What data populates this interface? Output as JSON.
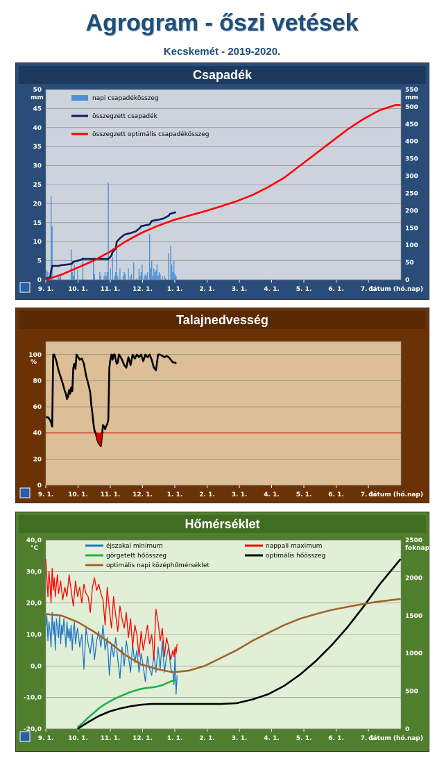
{
  "header": {
    "title": "Agrogram - őszi vetések",
    "subtitle": "Kecskemét - 2019-2020."
  },
  "colors": {
    "title": "#1f4e79"
  },
  "chart_data": [
    {
      "type": "bar+line",
      "title": "Csapadék",
      "left_unit": "mm",
      "right_unit": "mm",
      "xlabel": "dátum (hó.nap)",
      "x_ticks": [
        "9. 1.",
        "10. 1.",
        "11. 1.",
        "12. 1.",
        "1. 1.",
        "2. 1.",
        "3. 1.",
        "4. 1.",
        "5. 1.",
        "6. 1.",
        "7. 1."
      ],
      "ylim": [
        0,
        50
      ],
      "y_ticks": [
        0,
        5,
        10,
        15,
        20,
        25,
        30,
        35,
        40,
        45,
        50
      ],
      "ylim_right": [
        0,
        550
      ],
      "y_ticks_right": [
        0,
        50,
        100,
        150,
        200,
        250,
        300,
        350,
        400,
        450,
        500,
        550
      ],
      "grid": true,
      "legend_position": "top-left",
      "series": [
        {
          "name": "napi csapadékösszeg",
          "kind": "bar",
          "axis": "left",
          "color": "#4f91d3",
          "x": [
            1,
            2,
            3,
            4,
            5,
            6,
            12,
            13,
            14,
            24,
            25,
            26,
            27,
            30,
            35,
            45,
            46,
            51,
            52,
            55,
            56,
            57,
            58,
            59,
            61,
            63,
            65,
            66,
            67,
            68,
            70,
            73,
            74,
            75,
            78,
            80,
            81,
            83,
            86,
            88,
            89,
            90,
            91,
            93,
            94,
            95,
            96,
            98,
            99,
            100,
            101,
            102,
            103,
            104,
            105,
            106,
            107,
            108,
            110,
            112,
            113,
            116,
            118,
            119,
            120,
            121,
            122,
            123
          ],
          "values": [
            2.5,
            2,
            1,
            0.5,
            22,
            14,
            1,
            0.5,
            1.5,
            8,
            2,
            1,
            4,
            2.5,
            6,
            5,
            1.5,
            2,
            1,
            1,
            2,
            1,
            2,
            25.5,
            3,
            6,
            1,
            2,
            9,
            1,
            3,
            1,
            2,
            1.5,
            3,
            1,
            1.5,
            4.5,
            0.5,
            3,
            1,
            2,
            4,
            1,
            1.5,
            1,
            2,
            12,
            3,
            5,
            1,
            3,
            2,
            2.5,
            4,
            1,
            2,
            1.5,
            1,
            1,
            0.5,
            7,
            9,
            4,
            2,
            5,
            1.5,
            1
          ]
        },
        {
          "name": "összegzett csapadék",
          "kind": "line",
          "axis": "right",
          "color": "#0a1f5c",
          "x": [
            0,
            4,
            5,
            6,
            12,
            14,
            23,
            25,
            26,
            30,
            35,
            46,
            51,
            55,
            59,
            62,
            63,
            66,
            67,
            70,
            74,
            77,
            79,
            83,
            85,
            89,
            90,
            95,
            98,
            99,
            100,
            103,
            107,
            110,
            113,
            116,
            117,
            122,
            123
          ],
          "values": [
            5,
            5,
            25,
            40,
            40,
            42,
            45,
            47,
            52,
            55,
            60,
            60,
            60,
            60,
            60,
            70,
            80,
            90,
            110,
            120,
            130,
            133,
            134,
            138,
            140,
            150,
            155,
            158,
            160,
            165,
            170,
            172,
            174,
            176,
            180,
            185,
            190,
            195,
            195
          ]
        },
        {
          "name": "összegzett optimális csapadékösszeg",
          "kind": "line",
          "axis": "right",
          "color": "#ff0000",
          "x": [
            0,
            15,
            30,
            45,
            60,
            75,
            90,
            105,
            120,
            135,
            150,
            165,
            180,
            195,
            210,
            225,
            240,
            255,
            270,
            285,
            300,
            315,
            330,
            335
          ],
          "values": [
            0,
            15,
            35,
            55,
            80,
            110,
            135,
            155,
            172,
            185,
            198,
            212,
            227,
            245,
            268,
            295,
            330,
            365,
            400,
            435,
            465,
            490,
            505,
            505
          ]
        }
      ]
    },
    {
      "type": "line",
      "title": "Talajnedvesség",
      "left_unit": "%",
      "xlabel": "dátum (hó.nap)",
      "x_ticks": [
        "9. 1.",
        "10. 1.",
        "11. 1.",
        "12. 1.",
        "1. 1.",
        "2. 1.",
        "3. 1.",
        "4. 1.",
        "5. 1.",
        "6. 1.",
        "7. 1."
      ],
      "ylim": [
        0,
        110
      ],
      "y_ticks": [
        0,
        20,
        40,
        60,
        80,
        100
      ],
      "threshold": 40,
      "series": [
        {
          "name": "talajnedvesség",
          "color": "#000000",
          "x": [
            0,
            2,
            4,
            5,
            6,
            7,
            8,
            10,
            12,
            14,
            16,
            18,
            19,
            20,
            21,
            22,
            23,
            24,
            25,
            26,
            27,
            28,
            29,
            30,
            32,
            34,
            36,
            38,
            40,
            42,
            43,
            44,
            45,
            46,
            47,
            48,
            49,
            50,
            51,
            52,
            53,
            54,
            55,
            56,
            57,
            58,
            59,
            60,
            61,
            62,
            63,
            64,
            65,
            66,
            67,
            68,
            69,
            70,
            72,
            74,
            76,
            78,
            80,
            82,
            84,
            86,
            88,
            90,
            92,
            94,
            96,
            98,
            100,
            102,
            104,
            106,
            108,
            110,
            112,
            114,
            116,
            118,
            120,
            122,
            123
          ],
          "values": [
            52,
            52,
            50,
            48,
            45,
            100,
            100,
            95,
            88,
            83,
            78,
            72,
            70,
            66,
            68,
            73,
            70,
            75,
            72,
            90,
            93,
            89,
            100,
            99,
            96,
            97,
            93,
            84,
            78,
            71,
            61,
            55,
            47,
            42,
            40,
            37,
            34,
            32,
            31,
            30,
            38,
            46,
            45,
            43,
            45,
            47,
            50,
            90,
            96,
            100,
            96,
            100,
            100,
            96,
            93,
            94,
            100,
            99,
            96,
            92,
            90,
            98,
            92,
            100,
            97,
            100,
            98,
            100,
            95,
            100,
            98,
            100,
            96,
            90,
            88,
            100,
            100,
            99,
            98,
            99,
            98,
            96,
            94,
            94,
            93
          ]
        }
      ]
    },
    {
      "type": "line",
      "title": "Hőmérséklet",
      "left_unit": "°C",
      "right_unit": "foknap",
      "xlabel": "dátum (hó.nap)",
      "x_ticks": [
        "9. 1.",
        "10. 1.",
        "11. 1.",
        "12. 1.",
        "1. 1.",
        "2. 1.",
        "3. 1.",
        "4. 1.",
        "5. 1.",
        "6. 1.",
        "7. 1."
      ],
      "ylim": [
        -20,
        40
      ],
      "y_ticks": [
        "-20,0",
        "-10,0",
        "0,0",
        "10,0",
        "20,0",
        "30,0",
        "40,0"
      ],
      "ylim_right": [
        0,
        2500
      ],
      "y_ticks_right": [
        0,
        500,
        1000,
        1500,
        2000,
        2500
      ],
      "legend_position": "top",
      "series": [
        {
          "name": "éjszakai minimum",
          "axis": "left",
          "color": "#1f77c8",
          "x": [
            0,
            1,
            2,
            3,
            4,
            5,
            6,
            7,
            8,
            9,
            10,
            11,
            12,
            13,
            14,
            15,
            16,
            17,
            18,
            19,
            20,
            21,
            22,
            23,
            24,
            25,
            26,
            27,
            28,
            29,
            30,
            32,
            34,
            36,
            38,
            40,
            42,
            44,
            46,
            48,
            50,
            52,
            54,
            56,
            58,
            60,
            62,
            64,
            66,
            68,
            70,
            72,
            74,
            76,
            78,
            80,
            82,
            84,
            86,
            88,
            90,
            92,
            94,
            96,
            98,
            100,
            102,
            104,
            106,
            108,
            110,
            112,
            114,
            116,
            118,
            120,
            121,
            122,
            123,
            124
          ],
          "values": [
            13,
            16,
            8,
            14,
            11,
            6,
            17,
            10,
            14,
            5,
            15,
            12,
            9,
            16,
            7,
            13,
            10,
            15,
            11,
            6,
            14,
            9,
            12,
            8,
            13,
            5,
            11,
            14,
            7,
            10,
            12,
            6,
            10,
            -1,
            12,
            7,
            4,
            10,
            2,
            8,
            11,
            6,
            13,
            5,
            9,
            -3,
            7,
            3,
            9,
            2,
            -4,
            6,
            0,
            8,
            3,
            -2,
            7,
            1,
            5,
            -2,
            4,
            0,
            -5,
            3,
            -1,
            -3,
            4,
            -2,
            6,
            -1,
            8,
            -2,
            3,
            6,
            -1,
            -2,
            -6,
            4,
            -9,
            -3
          ]
        },
        {
          "name": "nappali maximum",
          "axis": "left",
          "color": "#ff0000",
          "x": [
            0,
            1,
            2,
            3,
            4,
            5,
            6,
            7,
            8,
            9,
            10,
            11,
            12,
            14,
            16,
            18,
            20,
            22,
            24,
            26,
            28,
            30,
            32,
            34,
            36,
            38,
            40,
            42,
            44,
            46,
            48,
            50,
            52,
            54,
            56,
            58,
            60,
            62,
            64,
            66,
            68,
            70,
            72,
            74,
            76,
            78,
            80,
            82,
            84,
            86,
            88,
            90,
            92,
            94,
            96,
            98,
            100,
            102,
            104,
            106,
            108,
            110,
            112,
            114,
            116,
            118,
            120,
            121,
            122,
            123,
            124
          ],
          "values": [
            34,
            28,
            22,
            30,
            26,
            20,
            31,
            24,
            28,
            22,
            26,
            29,
            23,
            27,
            21,
            25,
            22,
            29,
            24,
            19,
            27,
            22,
            25,
            20,
            26,
            23,
            22,
            17,
            25,
            28,
            24,
            26,
            23,
            21,
            13,
            25,
            18,
            12,
            22,
            16,
            11,
            19,
            15,
            12,
            17,
            9,
            15,
            6,
            13,
            10,
            3,
            11,
            5,
            9,
            13,
            7,
            10,
            2,
            18,
            14,
            8,
            12,
            3,
            9,
            6,
            2,
            5,
            3,
            6,
            4,
            7
          ]
        },
        {
          "name": "görgetett hőösszeg",
          "axis": "right",
          "color": "#21b04b",
          "x": [
            30,
            35,
            40,
            45,
            50,
            55,
            60,
            65,
            70,
            75,
            80,
            85,
            90,
            95,
            100,
            105,
            110,
            115,
            120,
            123
          ],
          "values": [
            20,
            80,
            150,
            210,
            270,
            320,
            360,
            400,
            430,
            460,
            490,
            510,
            530,
            540,
            550,
            560,
            580,
            610,
            640,
            650
          ]
        },
        {
          "name": "optimális hőösszeg",
          "axis": "right",
          "color": "#000000",
          "x": [
            30,
            40,
            50,
            60,
            70,
            80,
            90,
            100,
            110,
            120,
            135,
            150,
            165,
            180,
            195,
            210,
            225,
            240,
            255,
            270,
            285,
            300,
            315,
            335
          ],
          "values": [
            0,
            90,
            170,
            230,
            270,
            300,
            320,
            330,
            330,
            330,
            330,
            330,
            330,
            340,
            390,
            460,
            570,
            720,
            900,
            1110,
            1350,
            1620,
            1910,
            2250
          ]
        },
        {
          "name": "optimális napi középhőmérséklet",
          "axis": "left",
          "color": "#a0642a",
          "x": [
            0,
            15,
            30,
            45,
            60,
            75,
            90,
            105,
            120,
            135,
            150,
            165,
            180,
            195,
            210,
            225,
            240,
            255,
            270,
            285,
            300,
            315,
            335
          ],
          "values": [
            16.5,
            16,
            14,
            11,
            7.5,
            3.5,
            0.5,
            -1,
            -2,
            -1.5,
            0,
            2.5,
            5,
            8,
            10.5,
            13,
            15,
            16.5,
            17.8,
            18.8,
            19.7,
            20.5,
            21.3
          ]
        }
      ]
    }
  ]
}
